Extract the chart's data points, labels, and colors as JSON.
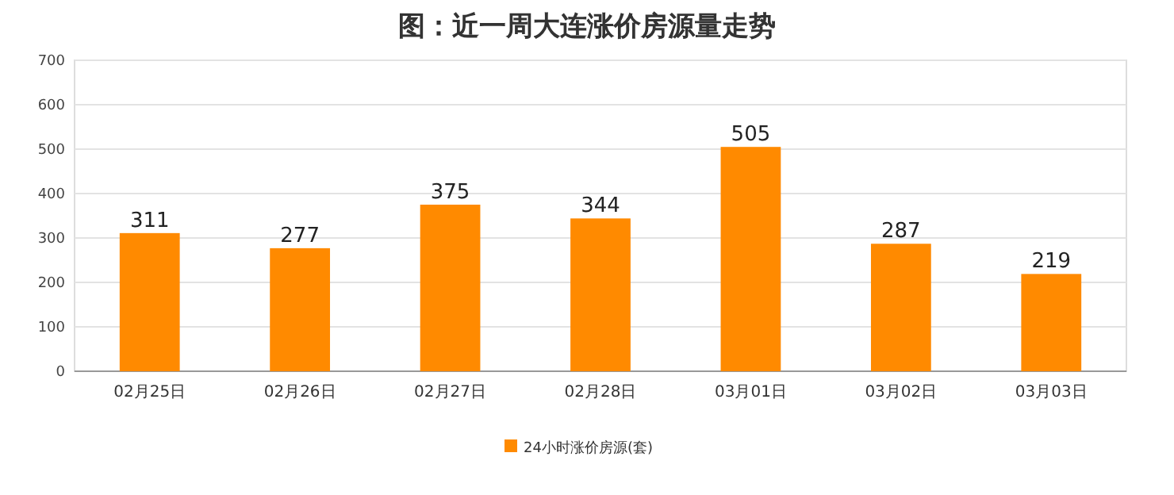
{
  "chart_data": {
    "type": "bar",
    "title": "图：近一周大连涨价房源量走势",
    "categories": [
      "02月25日",
      "02月26日",
      "02月27日",
      "02月28日",
      "03月01日",
      "03月02日",
      "03月03日"
    ],
    "series": [
      {
        "name": "24小时涨价房源(套)",
        "color": "#ff8a00",
        "values": [
          311,
          277,
          375,
          344,
          505,
          287,
          219
        ]
      }
    ],
    "ylim": [
      0,
      700
    ],
    "yticks": [
      0,
      100,
      200,
      300,
      400,
      500,
      600,
      700
    ],
    "grid": "y",
    "legend": "bottom",
    "data_labels": true
  }
}
